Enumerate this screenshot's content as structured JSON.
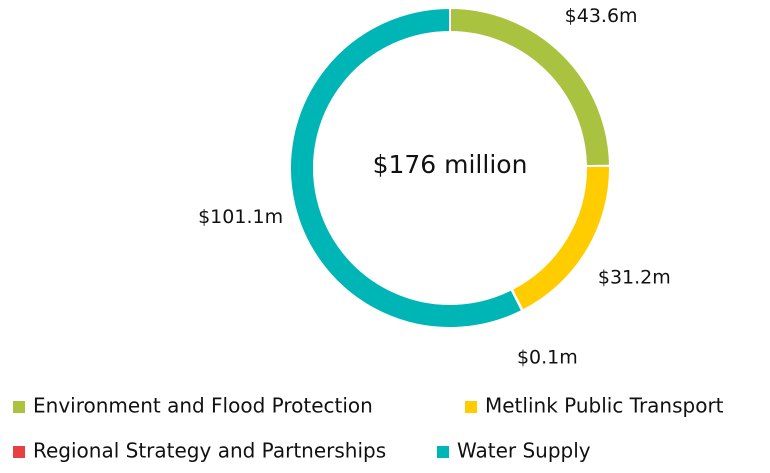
{
  "chart_data": {
    "type": "donut",
    "center_label": "$176 million",
    "categories": [
      "Environment and Flood Protection",
      "Metlink Public Transport",
      "Regional Strategy and Partnerships",
      "Water Supply"
    ],
    "values": [
      43.6,
      31.2,
      0.1,
      101.1
    ],
    "value_labels": [
      "$43.6m",
      "$31.2m",
      "$0.1m",
      "$101.1m"
    ],
    "colors": [
      "#a9c23f",
      "#ffcc00",
      "#e84040",
      "#00b5b5"
    ],
    "legend": "bottom"
  }
}
